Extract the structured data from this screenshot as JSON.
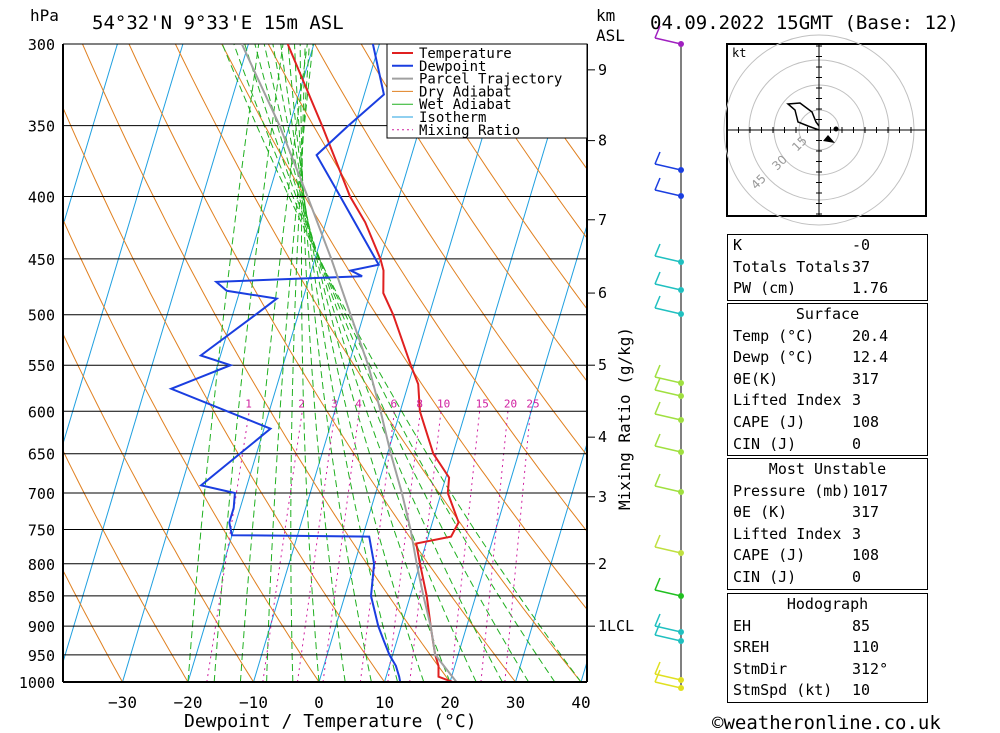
{
  "header": {
    "hpa_label": "hPa",
    "location": "54°32'N  9°33'E  15m  ASL",
    "km_label": "km",
    "asl_label": "ASL",
    "datetime": "04.09.2022  15GMT  (Base: 12)"
  },
  "footer": {
    "xlabel": "Dewpoint / Temperature (°C)",
    "copyright": "©weatheronline.co.uk"
  },
  "colors": {
    "temperature": "#e02020",
    "dewpoint": "#1a3ee0",
    "parcel": "#a0a0a0",
    "dry_adiabat": "#e08020",
    "wet_adiabat": "#20b020",
    "isotherm": "#20a0e0",
    "mixing_ratio": "#d020a0"
  },
  "chart_data": {
    "type": "line",
    "title": "54°32'N  9°33'E  15m  ASL",
    "xlabel": "Dewpoint / Temperature (°C)",
    "ylabel": "hPa",
    "y_scale": "log",
    "y_inverted": true,
    "skew": true,
    "xlim": [
      -40,
      40
    ],
    "ylim": [
      1000,
      300
    ],
    "pressure_ticks": [
      300,
      350,
      400,
      450,
      500,
      550,
      600,
      650,
      700,
      750,
      800,
      850,
      900,
      950,
      1000
    ],
    "temp_ticks": [
      -30,
      -20,
      -10,
      0,
      10,
      20,
      30,
      40
    ],
    "km_ticks": [
      {
        "label": "1LCL",
        "p": 900
      },
      {
        "label": "2",
        "p": 800
      },
      {
        "label": "3",
        "p": 705
      },
      {
        "label": "4",
        "p": 630
      },
      {
        "label": "5",
        "p": 550
      },
      {
        "label": "6",
        "p": 480
      },
      {
        "label": "7",
        "p": 418
      },
      {
        "label": "8",
        "p": 360
      },
      {
        "label": "9",
        "p": 315
      }
    ],
    "mixing_ratio_label": "Mixing Ratio (g/kg)",
    "mixing_ratio_values": [
      "1",
      "2",
      "3",
      "4",
      "6",
      "8",
      "10",
      "15",
      "20",
      "25"
    ],
    "legend": [
      "Temperature",
      "Dewpoint",
      "Parcel Trajectory",
      "Dry Adiabat",
      "Wet Adiabat",
      "Isotherm",
      "Mixing Ratio"
    ],
    "legend_position": "top-right",
    "series": [
      {
        "name": "Temperature",
        "points": [
          [
            1000,
            20.4
          ],
          [
            990,
            18
          ],
          [
            970,
            17.5
          ],
          [
            950,
            16.5
          ],
          [
            925,
            15.5
          ],
          [
            900,
            14.5
          ],
          [
            850,
            12.5
          ],
          [
            800,
            10
          ],
          [
            770,
            8.5
          ],
          [
            760,
            13.5
          ],
          [
            740,
            14
          ],
          [
            700,
            11
          ],
          [
            680,
            10.5
          ],
          [
            650,
            7
          ],
          [
            600,
            3
          ],
          [
            570,
            1.5
          ],
          [
            550,
            -0.5
          ],
          [
            500,
            -5.5
          ],
          [
            480,
            -8
          ],
          [
            460,
            -9
          ],
          [
            450,
            -10
          ],
          [
            420,
            -14
          ],
          [
            400,
            -17.5
          ],
          [
            350,
            -25
          ],
          [
            300,
            -34
          ]
        ]
      },
      {
        "name": "Dewpoint",
        "points": [
          [
            1000,
            12.4
          ],
          [
            990,
            12
          ],
          [
            970,
            11
          ],
          [
            950,
            9.5
          ],
          [
            925,
            8
          ],
          [
            900,
            6.5
          ],
          [
            850,
            4
          ],
          [
            800,
            3
          ],
          [
            760,
            1
          ],
          [
            758,
            -20
          ],
          [
            740,
            -21
          ],
          [
            720,
            -21
          ],
          [
            700,
            -21.5
          ],
          [
            690,
            -27
          ],
          [
            620,
            -19
          ],
          [
            575,
            -36
          ],
          [
            550,
            -28
          ],
          [
            540,
            -33
          ],
          [
            500,
            -26.5
          ],
          [
            485,
            -24
          ],
          [
            478,
            -32
          ],
          [
            470,
            -34
          ],
          [
            468,
            -25.5
          ],
          [
            465,
            -12
          ],
          [
            460,
            -14
          ],
          [
            455,
            -10
          ],
          [
            400,
            -19
          ],
          [
            370,
            -24.5
          ],
          [
            350,
            -21
          ],
          [
            330,
            -17
          ],
          [
            300,
            -21
          ]
        ]
      },
      {
        "name": "Parcel Trajectory",
        "points": [
          [
            1000,
            21
          ],
          [
            950,
            16.5
          ],
          [
            900,
            14.5
          ],
          [
            850,
            12
          ],
          [
            800,
            9.5
          ],
          [
            750,
            7
          ],
          [
            700,
            4
          ],
          [
            650,
            0.5
          ],
          [
            600,
            -3
          ],
          [
            550,
            -7
          ],
          [
            500,
            -12
          ],
          [
            450,
            -17.5
          ],
          [
            400,
            -24
          ],
          [
            350,
            -31.5
          ],
          [
            300,
            -41
          ]
        ]
      }
    ],
    "stats": {
      "K": "-0",
      "Totals Totals": "37",
      "PW (cm)": "1.76"
    },
    "hodograph": {
      "unit": "kt",
      "rings": [
        "15",
        "30",
        "45"
      ]
    }
  },
  "indices": [
    {
      "label": "K",
      "value": "-0"
    },
    {
      "label": "Totals Totals",
      "value": "37"
    },
    {
      "label": "PW (cm)",
      "value": "1.76"
    }
  ],
  "surface": {
    "title": "Surface",
    "rows": [
      {
        "label": "Temp (°C)",
        "value": "20.4"
      },
      {
        "label": "Dewp (°C)",
        "value": "12.4"
      },
      {
        "label": "θE(K)",
        "value": "317"
      },
      {
        "label": "Lifted Index",
        "value": "3"
      },
      {
        "label": "CAPE (J)",
        "value": "108"
      },
      {
        "label": "CIN (J)",
        "value": "0"
      }
    ]
  },
  "most_unstable": {
    "title": "Most Unstable",
    "rows": [
      {
        "label": "Pressure (mb)",
        "value": "1017"
      },
      {
        "label": "θE (K)",
        "value": "317"
      },
      {
        "label": "Lifted Index",
        "value": "3"
      },
      {
        "label": "CAPE (J)",
        "value": "108"
      },
      {
        "label": "CIN (J)",
        "value": "0"
      }
    ]
  },
  "hodograph_box": {
    "title": "Hodograph",
    "rows": [
      {
        "label": "EH",
        "value": "85"
      },
      {
        "label": "SREH",
        "value": "110"
      },
      {
        "label": "StmDir",
        "value": "312°"
      },
      {
        "label": "StmSpd (kt)",
        "value": "10"
      }
    ]
  }
}
